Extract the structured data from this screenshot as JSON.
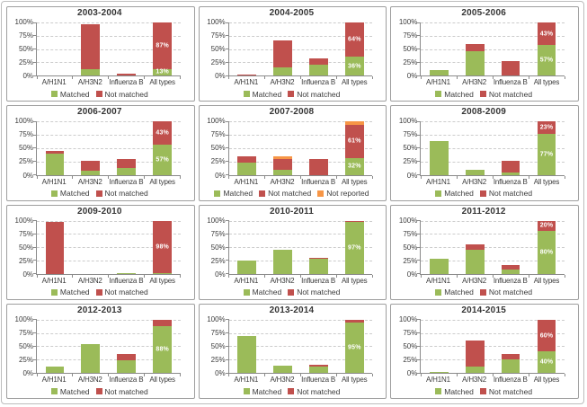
{
  "colors": {
    "matched": "#9BBB59",
    "not_matched": "#C0504D",
    "not_reported": "#F79646",
    "grid": "#cccccc",
    "axis": "#8a8a8a",
    "text": "#3a3a3a"
  },
  "series_labels": {
    "matched": "Matched",
    "not_matched": "Not matched",
    "not_reported": "Not reported"
  },
  "chart_data": [
    {
      "type": "bar",
      "stacked": true,
      "title": "2003-2004",
      "categories": [
        "A/H1N1",
        "A/H3N2",
        "Influenza B",
        "All types"
      ],
      "yticks": [
        "0%",
        "25%",
        "50%",
        "75%",
        "100%"
      ],
      "ylim": [
        0,
        100
      ],
      "legend_position": "bottom",
      "grid": true,
      "series": [
        {
          "name": "Matched",
          "key": "matched",
          "values": [
            0,
            13,
            0,
            13
          ]
        },
        {
          "name": "Not matched",
          "key": "not_matched",
          "values": [
            0,
            84,
            3,
            87
          ]
        }
      ],
      "bar_labels": [
        {
          "category": 3,
          "series": 0,
          "text": "13%"
        },
        {
          "category": 3,
          "series": 1,
          "text": "87%"
        }
      ]
    },
    {
      "type": "bar",
      "stacked": true,
      "title": "2004-2005",
      "categories": [
        "A/H1N1",
        "A/H3N2",
        "Influenza B",
        "All types"
      ],
      "yticks": [
        "0%",
        "25%",
        "50%",
        "75%",
        "100%"
      ],
      "ylim": [
        0,
        100
      ],
      "legend_position": "bottom",
      "grid": true,
      "series": [
        {
          "name": "Matched",
          "key": "matched",
          "values": [
            0,
            15,
            20,
            36
          ]
        },
        {
          "name": "Not matched",
          "key": "not_matched",
          "values": [
            1,
            51,
            13,
            64
          ]
        }
      ],
      "bar_labels": [
        {
          "category": 3,
          "series": 0,
          "text": "36%"
        },
        {
          "category": 3,
          "series": 1,
          "text": "64%"
        }
      ]
    },
    {
      "type": "bar",
      "stacked": true,
      "title": "2005-2006",
      "categories": [
        "A/H1N1",
        "A/H3N2",
        "Influenza B",
        "All types"
      ],
      "yticks": [
        "0%",
        "25%",
        "50%",
        "75%",
        "100%"
      ],
      "ylim": [
        0,
        100
      ],
      "legend_position": "bottom",
      "grid": true,
      "series": [
        {
          "name": "Matched",
          "key": "matched",
          "values": [
            10,
            46,
            0,
            57
          ]
        },
        {
          "name": "Not matched",
          "key": "not_matched",
          "values": [
            0,
            14,
            28,
            43
          ]
        }
      ],
      "bar_labels": [
        {
          "category": 3,
          "series": 0,
          "text": "57%"
        },
        {
          "category": 3,
          "series": 1,
          "text": "43%"
        }
      ]
    },
    {
      "type": "bar",
      "stacked": true,
      "title": "2006-2007",
      "categories": [
        "A/H1N1",
        "A/H3N2",
        "Influenza B",
        "All types"
      ],
      "yticks": [
        "0%",
        "25%",
        "50%",
        "75%",
        "100%"
      ],
      "ylim": [
        0,
        100
      ],
      "legend_position": "bottom",
      "grid": true,
      "series": [
        {
          "name": "Matched",
          "key": "matched",
          "values": [
            40,
            7,
            12,
            57
          ]
        },
        {
          "name": "Not matched",
          "key": "not_matched",
          "values": [
            4,
            20,
            18,
            43
          ]
        }
      ],
      "bar_labels": [
        {
          "category": 3,
          "series": 0,
          "text": "57%"
        },
        {
          "category": 3,
          "series": 1,
          "text": "43%"
        }
      ]
    },
    {
      "type": "bar",
      "stacked": true,
      "title": "2007-2008",
      "categories": [
        "A/H1N1",
        "A/H3N2",
        "Influenza B",
        "All types"
      ],
      "yticks": [
        "0%",
        "25%",
        "50%",
        "75%",
        "100%"
      ],
      "ylim": [
        0,
        100
      ],
      "legend_position": "bottom",
      "grid": true,
      "series": [
        {
          "name": "Matched",
          "key": "matched",
          "values": [
            23,
            9,
            0,
            32
          ]
        },
        {
          "name": "Not matched",
          "key": "not_matched",
          "values": [
            11,
            21,
            30,
            61
          ]
        },
        {
          "name": "Not reported",
          "key": "not_reported",
          "values": [
            0,
            4,
            0,
            7
          ]
        }
      ],
      "bar_labels": [
        {
          "category": 3,
          "series": 0,
          "text": "32%"
        },
        {
          "category": 3,
          "series": 1,
          "text": "61%"
        }
      ]
    },
    {
      "type": "bar",
      "stacked": true,
      "title": "2008-2009",
      "categories": [
        "A/H1N1",
        "A/H3N2",
        "Influenza B",
        "All types"
      ],
      "yticks": [
        "0%",
        "25%",
        "50%",
        "75%",
        "100%"
      ],
      "ylim": [
        0,
        100
      ],
      "legend_position": "bottom",
      "grid": true,
      "series": [
        {
          "name": "Matched",
          "key": "matched",
          "values": [
            63,
            10,
            5,
            77
          ]
        },
        {
          "name": "Not matched",
          "key": "not_matched",
          "values": [
            0,
            0,
            22,
            23
          ]
        }
      ],
      "bar_labels": [
        {
          "category": 3,
          "series": 0,
          "text": "77%"
        },
        {
          "category": 3,
          "series": 1,
          "text": "23%"
        }
      ]
    },
    {
      "type": "bar",
      "stacked": true,
      "title": "2009-2010",
      "categories": [
        "A/H1N1",
        "A/H3N2",
        "Influenza B",
        "All types"
      ],
      "yticks": [
        "0%",
        "25%",
        "50%",
        "75%",
        "100%"
      ],
      "ylim": [
        0,
        100
      ],
      "legend_position": "bottom",
      "grid": true,
      "series": [
        {
          "name": "Matched",
          "key": "matched",
          "values": [
            0,
            0,
            2,
            2
          ]
        },
        {
          "name": "Not matched",
          "key": "not_matched",
          "values": [
            97,
            0,
            0,
            98
          ]
        }
      ],
      "bar_labels": [
        {
          "category": 3,
          "series": 1,
          "text": "98%"
        }
      ]
    },
    {
      "type": "bar",
      "stacked": true,
      "title": "2010-2011",
      "categories": [
        "A/H1N1",
        "A/H3N2",
        "Influenza B",
        "All types"
      ],
      "yticks": [
        "0%",
        "25%",
        "50%",
        "75%",
        "100%"
      ],
      "ylim": [
        0,
        100
      ],
      "legend_position": "bottom",
      "grid": true,
      "series": [
        {
          "name": "Matched",
          "key": "matched",
          "values": [
            25,
            45,
            28,
            97
          ]
        },
        {
          "name": "Not matched",
          "key": "not_matched",
          "values": [
            0,
            0,
            2,
            3
          ]
        }
      ],
      "bar_labels": [
        {
          "category": 3,
          "series": 0,
          "text": "97%"
        }
      ]
    },
    {
      "type": "bar",
      "stacked": true,
      "title": "2011-2012",
      "categories": [
        "A/H1N1",
        "A/H3N2",
        "Influenza B",
        "All types"
      ],
      "yticks": [
        "0%",
        "25%",
        "50%",
        "75%",
        "100%"
      ],
      "ylim": [
        0,
        100
      ],
      "legend_position": "bottom",
      "grid": true,
      "series": [
        {
          "name": "Matched",
          "key": "matched",
          "values": [
            28,
            45,
            8,
            80
          ]
        },
        {
          "name": "Not matched",
          "key": "not_matched",
          "values": [
            0,
            11,
            8,
            20
          ]
        }
      ],
      "bar_labels": [
        {
          "category": 3,
          "series": 0,
          "text": "80%"
        },
        {
          "category": 3,
          "series": 1,
          "text": "20%"
        }
      ]
    },
    {
      "type": "bar",
      "stacked": true,
      "title": "2012-2013",
      "categories": [
        "A/H1N1",
        "A/H3N2",
        "Influenza B",
        "All types"
      ],
      "yticks": [
        "0%",
        "25%",
        "50%",
        "75%",
        "100%"
      ],
      "ylim": [
        0,
        100
      ],
      "legend_position": "bottom",
      "grid": true,
      "series": [
        {
          "name": "Matched",
          "key": "matched",
          "values": [
            11,
            54,
            24,
            88
          ]
        },
        {
          "name": "Not matched",
          "key": "not_matched",
          "values": [
            0,
            0,
            11,
            12
          ]
        }
      ],
      "bar_labels": [
        {
          "category": 3,
          "series": 0,
          "text": "88%"
        }
      ]
    },
    {
      "type": "bar",
      "stacked": true,
      "title": "2013-2014",
      "categories": [
        "A/H1N1",
        "A/H3N2",
        "Influenza B",
        "All types"
      ],
      "yticks": [
        "0%",
        "25%",
        "50%",
        "75%",
        "100%"
      ],
      "ylim": [
        0,
        100
      ],
      "legend_position": "bottom",
      "grid": true,
      "series": [
        {
          "name": "Matched",
          "key": "matched",
          "values": [
            70,
            14,
            11,
            95
          ]
        },
        {
          "name": "Not matched",
          "key": "not_matched",
          "values": [
            0,
            0,
            4,
            5
          ]
        }
      ],
      "bar_labels": [
        {
          "category": 3,
          "series": 0,
          "text": "95%"
        }
      ]
    },
    {
      "type": "bar",
      "stacked": true,
      "title": "2014-2015",
      "categories": [
        "A/H1N1",
        "A/H3N2",
        "Influenza B",
        "All types"
      ],
      "yticks": [
        "0%",
        "25%",
        "50%",
        "75%",
        "100%"
      ],
      "ylim": [
        0,
        100
      ],
      "legend_position": "bottom",
      "grid": true,
      "series": [
        {
          "name": "Matched",
          "key": "matched",
          "values": [
            2,
            12,
            25,
            40
          ]
        },
        {
          "name": "Not matched",
          "key": "not_matched",
          "values": [
            0,
            48,
            11,
            60
          ]
        }
      ],
      "bar_labels": [
        {
          "category": 3,
          "series": 0,
          "text": "40%"
        },
        {
          "category": 3,
          "series": 1,
          "text": "60%"
        }
      ]
    }
  ]
}
